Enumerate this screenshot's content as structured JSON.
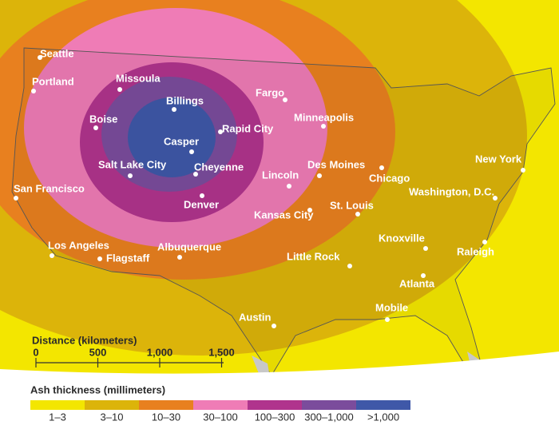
{
  "cities": [
    {
      "name": "Seattle"
    },
    {
      "name": "Portland"
    },
    {
      "name": "Missoula"
    },
    {
      "name": "Billings"
    },
    {
      "name": "Boise"
    },
    {
      "name": "Casper"
    },
    {
      "name": "Rapid City"
    },
    {
      "name": "Fargo"
    },
    {
      "name": "Minneapolis"
    },
    {
      "name": "Salt Lake City"
    },
    {
      "name": "Cheyenne"
    },
    {
      "name": "Denver"
    },
    {
      "name": "Lincoln"
    },
    {
      "name": "Des Moines"
    },
    {
      "name": "Chicago"
    },
    {
      "name": "San Francisco"
    },
    {
      "name": "Kansas City"
    },
    {
      "name": "St. Louis"
    },
    {
      "name": "Washington, D.C."
    },
    {
      "name": "New York"
    },
    {
      "name": "Knoxville"
    },
    {
      "name": "Raleigh"
    },
    {
      "name": "Los Angeles"
    },
    {
      "name": "Flagstaff"
    },
    {
      "name": "Albuquerque"
    },
    {
      "name": "Little Rock"
    },
    {
      "name": "Atlanta"
    },
    {
      "name": "Mobile"
    },
    {
      "name": "Austin"
    }
  ],
  "scale": {
    "title": "Distance (kilometers)",
    "ticks": [
      "0",
      "500",
      "1,000",
      "1,500"
    ]
  },
  "legend": {
    "title": "Ash thickness (millimeters)",
    "classes": [
      {
        "label": "1–3",
        "color": "#f3e600"
      },
      {
        "label": "3–10",
        "color": "#dcb40a"
      },
      {
        "label": "10–30",
        "color": "#e8801f"
      },
      {
        "label": "30–100",
        "color": "#ef7cb6"
      },
      {
        "label": "100–300",
        "color": "#b0348d"
      },
      {
        "label": "300–1,000",
        "color": "#7b4c9c"
      },
      {
        "label": ">1,000",
        "color": "#3f58a8"
      }
    ]
  }
}
